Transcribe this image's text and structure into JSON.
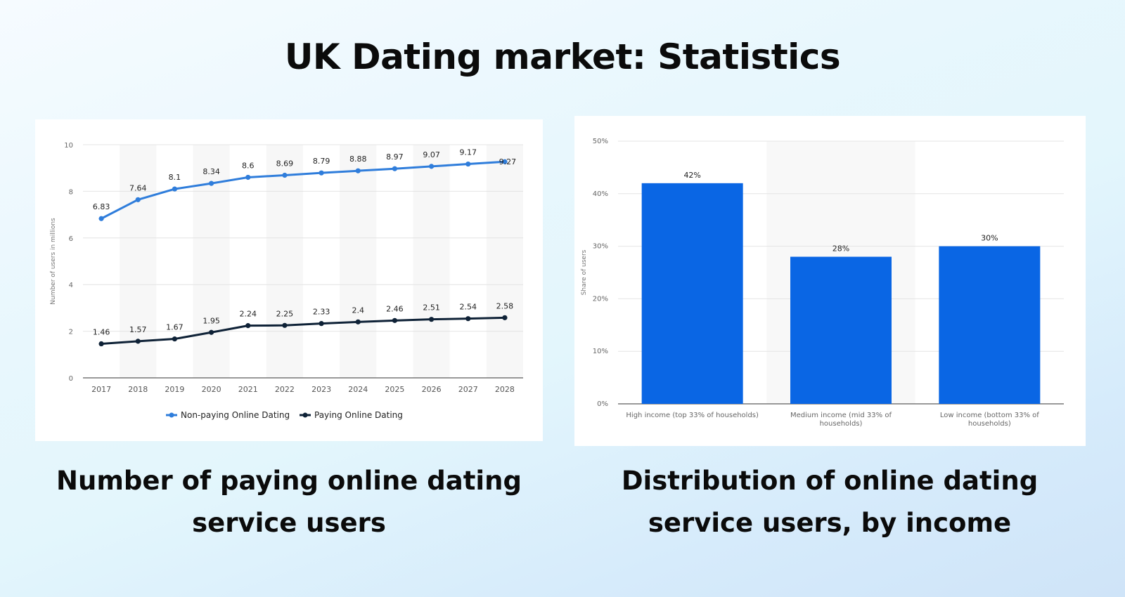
{
  "title": "UK Dating market: Statistics",
  "captions": {
    "left_line1": "Number of paying online dating",
    "left_line2": "service users",
    "right_line1": "Distribution of online dating",
    "right_line2": "service users, by income"
  },
  "chart_data": [
    {
      "type": "line",
      "categories": [
        "2017",
        "2018",
        "2019",
        "2020",
        "2021",
        "2022",
        "2023",
        "2024",
        "2025",
        "2026",
        "2027",
        "2028"
      ],
      "series": [
        {
          "name": "Non-paying Online Dating",
          "color": "#2f7ddb",
          "values": [
            6.83,
            7.64,
            8.1,
            8.34,
            8.6,
            8.69,
            8.79,
            8.88,
            8.97,
            9.07,
            9.17,
            9.27
          ]
        },
        {
          "name": "Paying Online Dating",
          "color": "#0f2237",
          "values": [
            1.46,
            1.57,
            1.67,
            1.95,
            2.24,
            2.25,
            2.33,
            2.4,
            2.46,
            2.51,
            2.54,
            2.58
          ]
        }
      ],
      "data_labels_nonpaying": [
        "6.83",
        "7.64",
        "8.1",
        "8.34",
        "8.6",
        "8.69",
        "8.79",
        "8.88",
        "8.97",
        "9.07",
        "9.17",
        "9.27"
      ],
      "data_labels_paying": [
        "1.46",
        "1.57",
        "1.67",
        "1.95",
        "2.24",
        "2.25",
        "2.33",
        "2.4",
        "2.46",
        "2.51",
        "2.54",
        "2.58"
      ],
      "ylabel": "Number of users in millions",
      "ylim": [
        0,
        10
      ],
      "yticks": [
        "0",
        "2",
        "4",
        "6",
        "8",
        "10"
      ],
      "legend": [
        "Non-paying Online Dating",
        "Paying Online Dating"
      ],
      "legend_position": "bottom",
      "grid": true
    },
    {
      "type": "bar",
      "categories": [
        "High income (top 33% of households)",
        "Medium income (mid 33% of households)",
        "Low income (bottom 33% of households)"
      ],
      "category_lines": [
        [
          "High income (top 33% of households)"
        ],
        [
          "Medium income (mid 33% of",
          "households)"
        ],
        [
          "Low income (bottom 33% of",
          "households)"
        ]
      ],
      "values": [
        42,
        28,
        30
      ],
      "data_labels": [
        "42%",
        "28%",
        "30%"
      ],
      "bar_color": "#0a66e4",
      "ylabel": "Share of users",
      "ylim": [
        0,
        50
      ],
      "yticks": [
        "0%",
        "10%",
        "20%",
        "30%",
        "40%",
        "50%"
      ],
      "grid": true
    }
  ]
}
